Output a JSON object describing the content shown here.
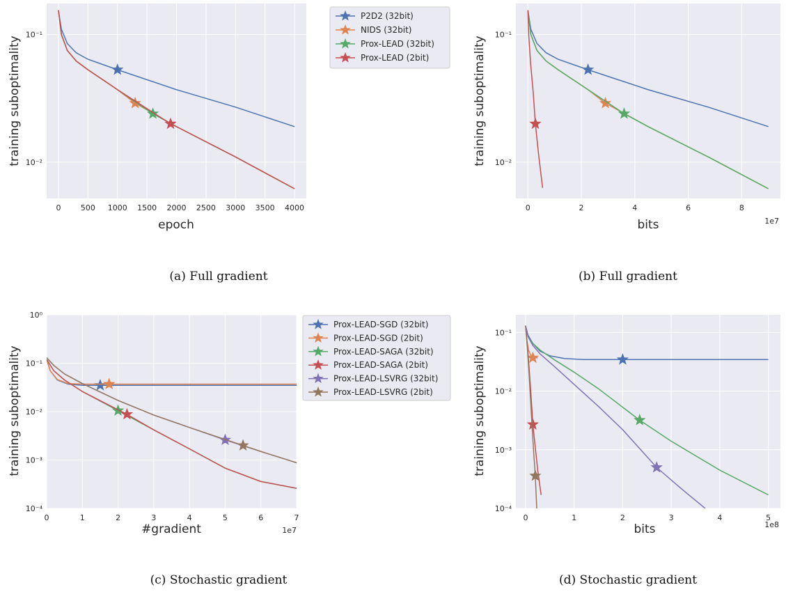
{
  "chart_data": [
    {
      "id": "a",
      "type": "line",
      "caption": "(a) Full gradient",
      "xlabel": "epoch",
      "ylabel": "training suboptimality",
      "yscale": "log",
      "xlim": [
        -200,
        4200
      ],
      "ylim": [
        0.0052,
        0.175
      ],
      "xticks": [
        0,
        500,
        1000,
        1500,
        2000,
        2500,
        3000,
        3500,
        4000
      ],
      "xtick_labels": [
        "0",
        "500",
        "1000",
        "1500",
        "2000",
        "2500",
        "3000",
        "3500",
        "4000"
      ],
      "yticks": [
        0.1,
        0.01
      ],
      "ytick_labels": [
        "10⁻¹",
        "10⁻²"
      ],
      "x_multiplier": "",
      "grid": true,
      "legend": {
        "placement": "outside-right",
        "entries": [
          {
            "name": "P2D2 (32bit)",
            "color": "#4c72b0"
          },
          {
            "name": "NIDS (32bit)",
            "color": "#dd8452"
          },
          {
            "name": "Prox-LEAD (32bit)",
            "color": "#55a868"
          },
          {
            "name": "Prox-LEAD (2bit)",
            "color": "#c44e52"
          }
        ]
      },
      "series": [
        {
          "name": "P2D2 (32bit)",
          "color": "#4c72b0",
          "x": [
            0,
            50,
            150,
            300,
            500,
            1000,
            2000,
            3000,
            4000
          ],
          "y": [
            0.155,
            0.11,
            0.085,
            0.072,
            0.064,
            0.053,
            0.037,
            0.027,
            0.019
          ],
          "markers": [
            [
              1000,
              0.053
            ]
          ]
        },
        {
          "name": "NIDS (32bit)",
          "color": "#dd8452",
          "x": [
            0,
            50,
            150,
            300,
            500,
            1000,
            1300,
            2000,
            3000,
            4000
          ],
          "y": [
            0.155,
            0.1,
            0.075,
            0.062,
            0.053,
            0.037,
            0.029,
            0.019,
            0.011,
            0.0062
          ],
          "markers": [
            [
              1300,
              0.029
            ]
          ]
        },
        {
          "name": "Prox-LEAD (32bit)",
          "color": "#55a868",
          "x": [
            0,
            50,
            150,
            300,
            500,
            1000,
            1600,
            2000,
            3000,
            4000
          ],
          "y": [
            0.155,
            0.1,
            0.075,
            0.062,
            0.053,
            0.037,
            0.024,
            0.019,
            0.011,
            0.0062
          ],
          "markers": [
            [
              1600,
              0.024
            ]
          ]
        },
        {
          "name": "Prox-LEAD (2bit)",
          "color": "#c44e52",
          "x": [
            0,
            50,
            150,
            300,
            500,
            1000,
            1900,
            2000,
            3000,
            4000
          ],
          "y": [
            0.155,
            0.1,
            0.075,
            0.062,
            0.053,
            0.037,
            0.02,
            0.019,
            0.011,
            0.0062
          ],
          "markers": [
            [
              1900,
              0.02
            ]
          ]
        }
      ]
    },
    {
      "id": "b",
      "type": "line",
      "caption": "(b) Full gradient",
      "xlabel": "bits",
      "ylabel": "training suboptimality",
      "yscale": "log",
      "xlim": [
        -4500000,
        94500000
      ],
      "ylim": [
        0.0052,
        0.175
      ],
      "xticks": [
        0,
        20000000,
        40000000,
        60000000,
        80000000
      ],
      "xtick_labels": [
        "0",
        "2",
        "4",
        "6",
        "8"
      ],
      "yticks": [
        0.1,
        0.01
      ],
      "ytick_labels": [
        "10⁻¹",
        "10⁻²"
      ],
      "x_multiplier": "1e7",
      "grid": true,
      "series": [
        {
          "name": "P2D2 (32bit)",
          "color": "#4c72b0",
          "x": [
            0,
            1100000,
            3400000,
            6800000,
            11300000,
            22500000,
            45000000,
            67500000,
            90000000
          ],
          "y": [
            0.155,
            0.11,
            0.085,
            0.072,
            0.064,
            0.053,
            0.037,
            0.027,
            0.019
          ],
          "markers": [
            [
              22500000,
              0.053
            ]
          ]
        },
        {
          "name": "NIDS (32bit)",
          "color": "#dd8452",
          "x": [
            0,
            1100000,
            3400000,
            6800000,
            11300000,
            22500000,
            29000000,
            45000000,
            67500000,
            90000000
          ],
          "y": [
            0.155,
            0.1,
            0.075,
            0.062,
            0.053,
            0.037,
            0.029,
            0.019,
            0.011,
            0.0062
          ],
          "markers": [
            [
              29000000,
              0.029
            ]
          ]
        },
        {
          "name": "Prox-LEAD (32bit)",
          "color": "#55a868",
          "x": [
            0,
            1100000,
            3400000,
            6800000,
            11300000,
            22500000,
            36000000,
            45000000,
            67500000,
            90000000
          ],
          "y": [
            0.155,
            0.1,
            0.075,
            0.062,
            0.053,
            0.037,
            0.024,
            0.019,
            0.011,
            0.0062
          ],
          "markers": [
            [
              36000000,
              0.024
            ]
          ]
        },
        {
          "name": "Prox-LEAD (2bit)",
          "color": "#c44e52",
          "x": [
            0,
            300000,
            1000000,
            2000000,
            2800000,
            4000000,
            5500000
          ],
          "y": [
            0.155,
            0.1,
            0.06,
            0.035,
            0.02,
            0.0115,
            0.0063
          ],
          "markers": [
            [
              2800000,
              0.02
            ]
          ]
        }
      ]
    },
    {
      "id": "c",
      "type": "line",
      "caption": "(c) Stochastic gradient",
      "xlabel": "#gradient",
      "ylabel": "training suboptimality",
      "yscale": "log",
      "xlim": [
        0,
        70000000
      ],
      "ylim": [
        0.0001,
        1.0
      ],
      "xticks": [
        0,
        10000000,
        20000000,
        30000000,
        40000000,
        50000000,
        60000000,
        70000000
      ],
      "xtick_labels": [
        "0",
        "1",
        "2",
        "3",
        "4",
        "5",
        "6",
        "7"
      ],
      "yticks": [
        1.0,
        0.1,
        0.01,
        0.001,
        0.0001
      ],
      "ytick_labels": [
        "10⁰",
        "10⁻¹",
        "10⁻²",
        "10⁻³",
        "10⁻⁴"
      ],
      "x_multiplier": "1e7",
      "grid": true,
      "legend": {
        "placement": "outside-right",
        "entries": [
          {
            "name": "Prox-LEAD-SGD (32bit)",
            "color": "#4c72b0"
          },
          {
            "name": "Prox-LEAD-SGD (2bit)",
            "color": "#dd8452"
          },
          {
            "name": "Prox-LEAD-SAGA (32bit)",
            "color": "#55a868"
          },
          {
            "name": "Prox-LEAD-SAGA (2bit)",
            "color": "#c44e52"
          },
          {
            "name": "Prox-LEAD-LSVRG (32bit)",
            "color": "#8172b3"
          },
          {
            "name": "Prox-LEAD-LSVRG (2bit)",
            "color": "#937860"
          }
        ]
      },
      "series": [
        {
          "name": "Prox-LEAD-SGD (32bit)",
          "color": "#4c72b0",
          "x": [
            0,
            1000000,
            3000000,
            6000000,
            10000000,
            15000000,
            40000000,
            70000000
          ],
          "y": [
            0.12,
            0.07,
            0.045,
            0.037,
            0.035,
            0.035,
            0.035,
            0.035
          ],
          "markers": [
            [
              15000000,
              0.035
            ]
          ]
        },
        {
          "name": "Prox-LEAD-SGD (2bit)",
          "color": "#dd8452",
          "x": [
            0,
            1000000,
            3000000,
            6000000,
            10000000,
            17500000,
            40000000,
            70000000
          ],
          "y": [
            0.12,
            0.07,
            0.046,
            0.038,
            0.037,
            0.037,
            0.037,
            0.037
          ],
          "markers": [
            [
              17500000,
              0.037
            ]
          ]
        },
        {
          "name": "Prox-LEAD-SAGA (32bit)",
          "color": "#55a868",
          "x": [
            0,
            2000000,
            5000000,
            10000000,
            20000000,
            30000000,
            40000000,
            50000000,
            60000000,
            70000000
          ],
          "y": [
            0.12,
            0.07,
            0.045,
            0.026,
            0.0105,
            0.0042,
            0.0017,
            0.00068,
            0.00036,
            0.00026
          ],
          "markers": [
            [
              20000000,
              0.0105
            ]
          ]
        },
        {
          "name": "Prox-LEAD-SAGA (2bit)",
          "color": "#c44e52",
          "x": [
            0,
            2000000,
            5000000,
            10000000,
            22500000,
            30000000,
            40000000,
            50000000,
            60000000,
            70000000
          ],
          "y": [
            0.12,
            0.07,
            0.045,
            0.026,
            0.0088,
            0.0042,
            0.0017,
            0.00068,
            0.00036,
            0.00026
          ],
          "markers": [
            [
              22500000,
              0.0088
            ]
          ]
        },
        {
          "name": "Prox-LEAD-LSVRG (32bit)",
          "color": "#8172b3",
          "x": [
            0,
            2000000,
            5000000,
            10000000,
            20000000,
            30000000,
            40000000,
            50000000,
            60000000,
            70000000
          ],
          "y": [
            0.13,
            0.09,
            0.06,
            0.038,
            0.017,
            0.0085,
            0.0047,
            0.0026,
            0.0015,
            0.00088
          ],
          "markers": [
            [
              50000000,
              0.0026
            ]
          ]
        },
        {
          "name": "Prox-LEAD-LSVRG (2bit)",
          "color": "#937860",
          "x": [
            0,
            2000000,
            5000000,
            10000000,
            20000000,
            30000000,
            40000000,
            55000000,
            60000000,
            70000000
          ],
          "y": [
            0.13,
            0.09,
            0.06,
            0.038,
            0.017,
            0.0085,
            0.0047,
            0.002,
            0.0015,
            0.00088
          ],
          "markers": [
            [
              55000000,
              0.002
            ]
          ]
        }
      ]
    },
    {
      "id": "d",
      "type": "line",
      "caption": "(d) Stochastic gradient",
      "xlabel": "bits",
      "ylabel": "training suboptimality",
      "yscale": "log",
      "xlim": [
        -20000000,
        525000000
      ],
      "ylim": [
        0.0001,
        0.2
      ],
      "xticks": [
        0,
        100000000,
        200000000,
        300000000,
        400000000,
        500000000
      ],
      "xtick_labels": [
        "0",
        "1",
        "2",
        "3",
        "4",
        "5"
      ],
      "yticks": [
        0.1,
        0.01,
        0.001,
        0.0001
      ],
      "ytick_labels": [
        "10⁻¹",
        "10⁻²",
        "10⁻³",
        "10⁻⁴"
      ],
      "x_multiplier": "1e8",
      "grid": true,
      "series": [
        {
          "name": "Prox-LEAD-SGD (32bit)",
          "color": "#4c72b0",
          "x": [
            0,
            5000000,
            15000000,
            30000000,
            50000000,
            80000000,
            120000000,
            200000000,
            350000000,
            500000000
          ],
          "y": [
            0.13,
            0.09,
            0.065,
            0.048,
            0.04,
            0.036,
            0.0345,
            0.0345,
            0.0345,
            0.0345
          ],
          "markers": [
            [
              200000000,
              0.0345
            ]
          ]
        },
        {
          "name": "Prox-LEAD-SGD (2bit)",
          "color": "#dd8452",
          "x": [
            0,
            2000000,
            6000000,
            12000000,
            18000000,
            25000000
          ],
          "y": [
            0.13,
            0.08,
            0.05,
            0.039,
            0.037,
            0.037
          ],
          "markers": [
            [
              15000000,
              0.037
            ]
          ]
        },
        {
          "name": "Prox-LEAD-SAGA (32bit)",
          "color": "#55a868",
          "x": [
            0,
            5000000,
            15000000,
            30000000,
            60000000,
            100000000,
            150000000,
            235000000,
            300000000,
            400000000,
            500000000
          ],
          "y": [
            0.13,
            0.085,
            0.065,
            0.05,
            0.034,
            0.021,
            0.011,
            0.0032,
            0.0014,
            0.00045,
            0.00017
          ],
          "markers": [
            [
              235000000,
              0.0032
            ]
          ]
        },
        {
          "name": "Prox-LEAD-SAGA (2bit)",
          "color": "#c44e52",
          "x": [
            0,
            5000000,
            10000000,
            15000000,
            20000000,
            25000000,
            32000000
          ],
          "y": [
            0.13,
            0.045,
            0.012,
            0.0027,
            0.0011,
            0.00045,
            0.00017
          ],
          "markers": [
            [
              15000000,
              0.0027
            ]
          ]
        },
        {
          "name": "Prox-LEAD-LSVRG (32bit)",
          "color": "#8172b3",
          "x": [
            0,
            5000000,
            15000000,
            30000000,
            60000000,
            100000000,
            150000000,
            200000000,
            270000000,
            320000000,
            370000000
          ],
          "y": [
            0.13,
            0.085,
            0.06,
            0.043,
            0.026,
            0.013,
            0.0055,
            0.0022,
            0.0005,
            0.00022,
            0.0001
          ],
          "markers": [
            [
              270000000,
              0.0005
            ]
          ]
        },
        {
          "name": "Prox-LEAD-LSVRG (2bit)",
          "color": "#937860",
          "x": [
            0,
            4000000,
            8000000,
            12000000,
            16000000,
            20000000,
            23000000
          ],
          "y": [
            0.13,
            0.05,
            0.015,
            0.004,
            0.0011,
            0.00036,
            0.0001
          ],
          "markers": [
            [
              20000000,
              0.00036
            ]
          ]
        }
      ]
    }
  ]
}
